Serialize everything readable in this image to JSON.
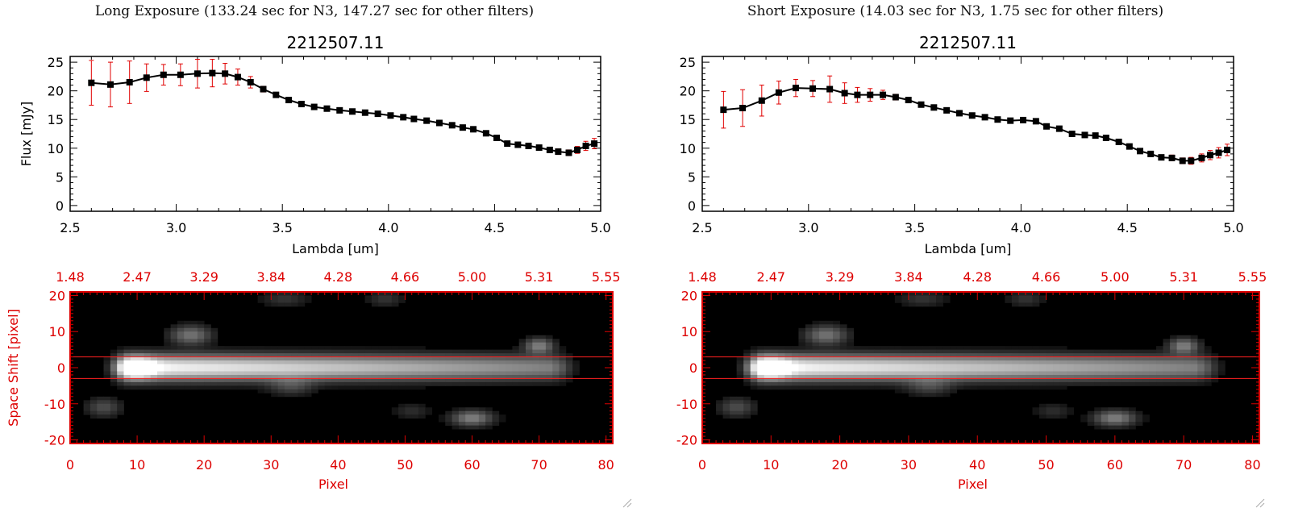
{
  "panels": [
    {
      "id": "long",
      "exposure_title": "Long Exposure (133.24 sec for N3, 147.27 sec for other filters)"
    },
    {
      "id": "short",
      "exposure_title": "Short Exposure (14.03 sec for N3, 1.75 sec for other filters)"
    }
  ],
  "chart_data": [
    {
      "type": "line",
      "panel": "long",
      "title": "2212507.11",
      "xlabel": "Lambda [um]",
      "ylabel": "Flux [mJy]",
      "xlim": [
        2.5,
        5.0
      ],
      "ylim": [
        -1,
        26
      ],
      "xticks": [
        "2.5",
        "3.0",
        "3.5",
        "4.0",
        "4.5",
        "5.0"
      ],
      "yticks": [
        "0",
        "5",
        "10",
        "15",
        "20",
        "25"
      ],
      "line_color": "#000000",
      "marker": "square",
      "errorbar_color": "#e00000",
      "series": [
        {
          "x": [
            2.6,
            2.69,
            2.78,
            2.86,
            2.94,
            3.02,
            3.1,
            3.17,
            3.23,
            3.29,
            3.35,
            3.41,
            3.47,
            3.53,
            3.59,
            3.65,
            3.71,
            3.77,
            3.83,
            3.89,
            3.95,
            4.01,
            4.07,
            4.12,
            4.18,
            4.24,
            4.3,
            4.35,
            4.4,
            4.46,
            4.51,
            4.56,
            4.61,
            4.66,
            4.71,
            4.76,
            4.8,
            4.85,
            4.89,
            4.93,
            4.97
          ],
          "y": [
            21.4,
            21.1,
            21.5,
            22.3,
            22.8,
            22.8,
            23.0,
            23.1,
            23.0,
            22.4,
            21.5,
            20.3,
            19.3,
            18.4,
            17.7,
            17.2,
            16.9,
            16.6,
            16.4,
            16.2,
            16.0,
            15.7,
            15.4,
            15.1,
            14.8,
            14.4,
            14.0,
            13.6,
            13.3,
            12.6,
            11.8,
            10.8,
            10.6,
            10.4,
            10.1,
            9.7,
            9.4,
            9.2,
            9.7,
            10.4,
            10.8
          ],
          "yerr": [
            3.9,
            3.9,
            3.7,
            2.4,
            1.8,
            1.9,
            2.5,
            2.4,
            1.8,
            1.4,
            1.0,
            0.5,
            0.4,
            0.4,
            0.4,
            0.3,
            0.3,
            0.3,
            0.3,
            0.3,
            0.3,
            0.3,
            0.3,
            0.3,
            0.3,
            0.3,
            0.3,
            0.3,
            0.3,
            0.3,
            0.3,
            0.3,
            0.3,
            0.3,
            0.3,
            0.3,
            0.5,
            0.5,
            0.6,
            0.8,
            0.9
          ]
        }
      ],
      "image": {
        "title": "",
        "xlabel": "Pixel",
        "ylabel": "Space Shift [pixel]",
        "xlim": [
          0,
          81
        ],
        "ylim": [
          -21,
          21
        ],
        "xticks": [
          "0",
          "10",
          "20",
          "30",
          "40",
          "50",
          "60",
          "70",
          "80"
        ],
        "yticks": [
          "-20",
          "-10",
          "0",
          "10",
          "20"
        ],
        "top_ticks": [
          "1.48",
          "2.47",
          "3.29",
          "3.84",
          "4.28",
          "4.66",
          "5.00",
          "5.31",
          "5.55"
        ],
        "aperture": [
          -3,
          3
        ],
        "axis_color": "#dd0000"
      }
    },
    {
      "type": "line",
      "panel": "short",
      "title": "2212507.11",
      "xlabel": "Lambda [um]",
      "ylabel": "Flux [mJy]",
      "xlim": [
        2.5,
        5.0
      ],
      "ylim": [
        -1,
        26
      ],
      "xticks": [
        "2.5",
        "3.0",
        "3.5",
        "4.0",
        "4.5",
        "5.0"
      ],
      "yticks": [
        "0",
        "5",
        "10",
        "15",
        "20",
        "25"
      ],
      "line_color": "#000000",
      "marker": "square",
      "errorbar_color": "#e00000",
      "series": [
        {
          "x": [
            2.6,
            2.69,
            2.78,
            2.86,
            2.94,
            3.02,
            3.1,
            3.17,
            3.23,
            3.29,
            3.35,
            3.41,
            3.47,
            3.53,
            3.59,
            3.65,
            3.71,
            3.77,
            3.83,
            3.89,
            3.95,
            4.01,
            4.07,
            4.12,
            4.18,
            4.24,
            4.3,
            4.35,
            4.4,
            4.46,
            4.51,
            4.56,
            4.61,
            4.66,
            4.71,
            4.76,
            4.8,
            4.85,
            4.89,
            4.93,
            4.97
          ],
          "y": [
            16.7,
            17.0,
            18.3,
            19.7,
            20.5,
            20.4,
            20.3,
            19.6,
            19.3,
            19.3,
            19.3,
            18.9,
            18.4,
            17.6,
            17.1,
            16.6,
            16.1,
            15.7,
            15.4,
            15.0,
            14.8,
            14.9,
            14.7,
            13.8,
            13.4,
            12.5,
            12.3,
            12.2,
            11.8,
            11.1,
            10.3,
            9.5,
            9.0,
            8.4,
            8.3,
            7.8,
            7.8,
            8.3,
            8.8,
            9.2,
            9.7
          ],
          "yerr": [
            3.2,
            3.2,
            2.7,
            2.0,
            1.5,
            1.4,
            2.3,
            1.8,
            1.3,
            1.1,
            0.8,
            0.5,
            0.4,
            0.4,
            0.4,
            0.4,
            0.3,
            0.3,
            0.3,
            0.3,
            0.3,
            0.3,
            0.3,
            0.3,
            0.3,
            0.3,
            0.3,
            0.3,
            0.3,
            0.3,
            0.3,
            0.3,
            0.4,
            0.4,
            0.5,
            0.5,
            0.6,
            0.7,
            0.8,
            0.9,
            1.0
          ]
        }
      ],
      "image": {
        "title": "",
        "xlabel": "Pixel",
        "ylabel": "Space Shift [pixel]",
        "xlim": [
          0,
          81
        ],
        "ylim": [
          -21,
          21
        ],
        "xticks": [
          "0",
          "10",
          "20",
          "30",
          "40",
          "50",
          "60",
          "70",
          "80"
        ],
        "yticks": [
          "-20",
          "-10",
          "0",
          "10",
          "20"
        ],
        "top_ticks": [
          "1.48",
          "2.47",
          "3.29",
          "3.84",
          "4.28",
          "4.66",
          "5.00",
          "5.31",
          "5.55"
        ],
        "aperture": [
          -3,
          3
        ],
        "axis_color": "#dd0000"
      }
    }
  ]
}
